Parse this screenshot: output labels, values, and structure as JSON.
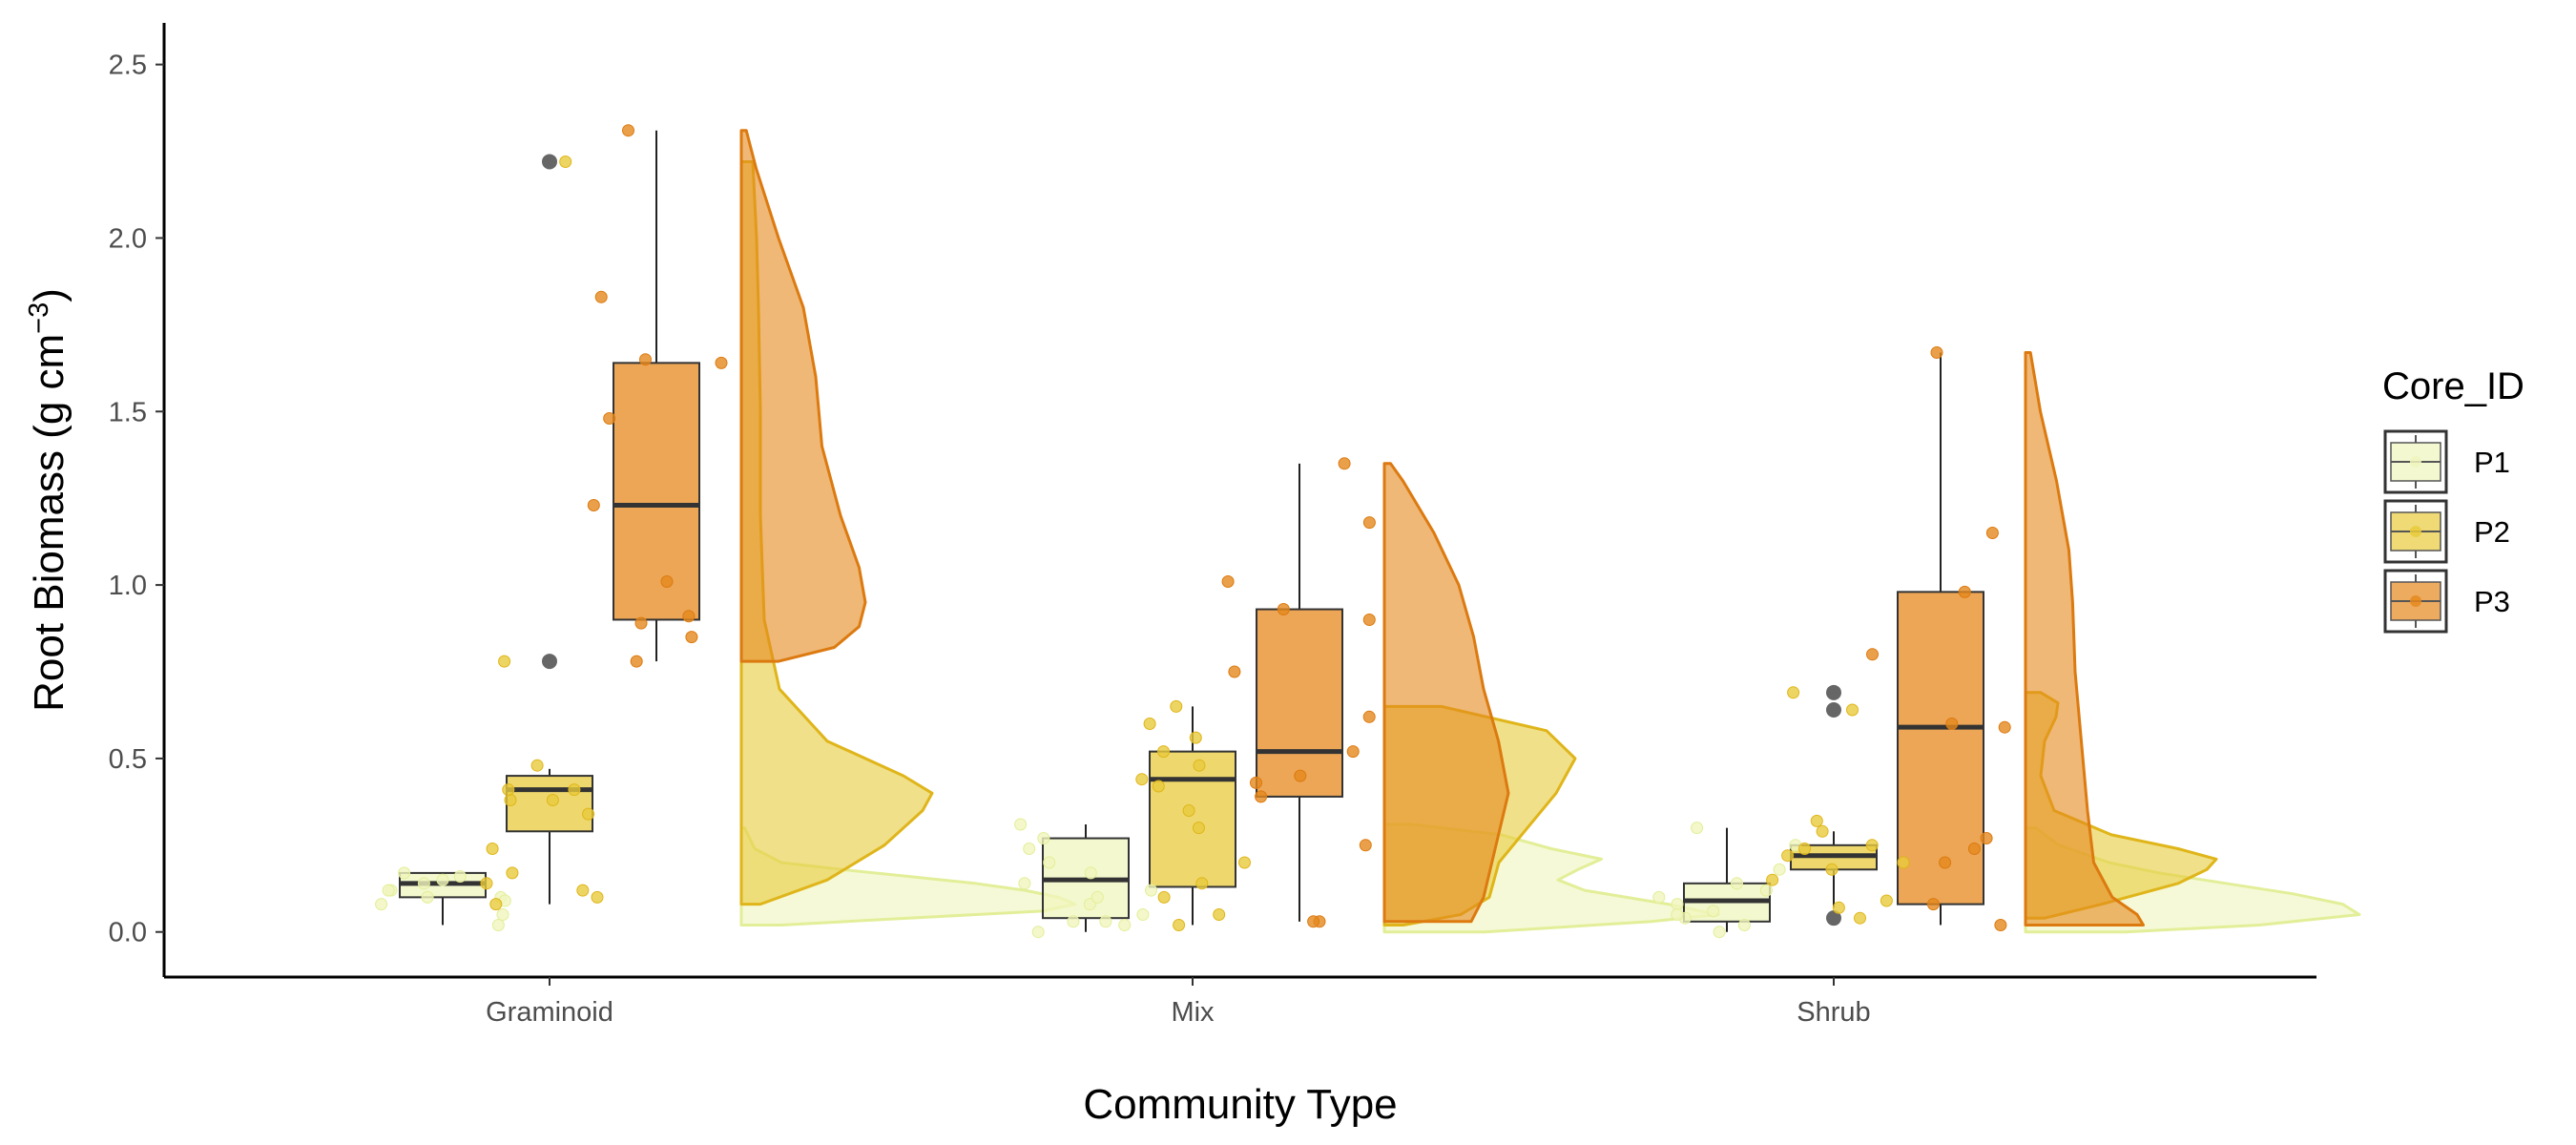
{
  "chart_data": {
    "type": "raincloud",
    "xlabel": "Community Type",
    "ylabel_main": "Root Biomass (g cm",
    "ylabel_exp": "−3",
    "ylabel_close": ")",
    "ylim": [
      -0.13,
      2.62
    ],
    "yticks": [
      0.0,
      0.5,
      1.0,
      1.5,
      2.0,
      2.5
    ],
    "ytick_labels": [
      "0.0",
      "0.5",
      "1.0",
      "1.5",
      "2.0",
      "2.5"
    ],
    "categories": [
      "Graminoid",
      "Mix",
      "Shrub"
    ],
    "legend": {
      "title": "Core_ID",
      "position": "right",
      "entries": [
        {
          "label": "P1",
          "color": "#f0f5bd"
        },
        {
          "label": "P2",
          "color": "#e8cb3c"
        },
        {
          "label": "P3",
          "color": "#e5881d"
        }
      ]
    },
    "series": [
      {
        "name": "P1",
        "fill": "#f0f5bd",
        "edge": "#e3ee98",
        "groups": [
          {
            "category": "Graminoid",
            "q1": 0.1,
            "median": 0.14,
            "q3": 0.17,
            "whisker_low": 0.02,
            "whisker_high": 0.17,
            "outliers": [],
            "points": [
              0.02,
              0.05,
              0.08,
              0.1,
              0.1,
              0.12,
              0.14,
              0.15,
              0.16,
              0.17,
              0.12,
              0.09
            ],
            "density": [
              [
                0.02,
                0.12
              ],
              [
                0.04,
                0.5
              ],
              [
                0.06,
                0.9
              ],
              [
                0.08,
                1.0
              ],
              [
                0.1,
                0.95
              ],
              [
                0.12,
                0.85
              ],
              [
                0.14,
                0.7
              ],
              [
                0.16,
                0.5
              ],
              [
                0.18,
                0.3
              ],
              [
                0.2,
                0.12
              ],
              [
                0.24,
                0.04
              ],
              [
                0.3,
                0.01
              ]
            ]
          },
          {
            "category": "Mix",
            "q1": 0.04,
            "median": 0.15,
            "q3": 0.27,
            "whisker_low": 0.0,
            "whisker_high": 0.31,
            "outliers": [],
            "points": [
              0.0,
              0.02,
              0.03,
              0.05,
              0.08,
              0.1,
              0.14,
              0.17,
              0.2,
              0.24,
              0.27,
              0.31,
              0.03,
              0.12
            ],
            "density": [
              [
                0.0,
                0.3
              ],
              [
                0.03,
                0.8
              ],
              [
                0.05,
                1.0
              ],
              [
                0.08,
                0.85
              ],
              [
                0.12,
                0.6
              ],
              [
                0.15,
                0.52
              ],
              [
                0.18,
                0.58
              ],
              [
                0.21,
                0.65
              ],
              [
                0.24,
                0.5
              ],
              [
                0.28,
                0.35
              ],
              [
                0.31,
                0.08
              ]
            ]
          },
          {
            "category": "Shrub",
            "q1": 0.03,
            "median": 0.09,
            "q3": 0.14,
            "whisker_low": 0.0,
            "whisker_high": 0.3,
            "outliers": [],
            "points": [
              0.0,
              0.02,
              0.04,
              0.06,
              0.08,
              0.1,
              0.12,
              0.14,
              0.18,
              0.25,
              0.3,
              0.05
            ],
            "density": [
              [
                0.0,
                0.3
              ],
              [
                0.02,
                0.7
              ],
              [
                0.05,
                1.0
              ],
              [
                0.08,
                0.95
              ],
              [
                0.11,
                0.8
              ],
              [
                0.14,
                0.6
              ],
              [
                0.17,
                0.4
              ],
              [
                0.2,
                0.25
              ],
              [
                0.25,
                0.1
              ],
              [
                0.3,
                0.03
              ]
            ]
          }
        ]
      },
      {
        "name": "P2",
        "fill": "#e8cb3c",
        "edge": "#dfb51a",
        "groups": [
          {
            "category": "Graminoid",
            "q1": 0.29,
            "median": 0.41,
            "q3": 0.45,
            "whisker_low": 0.08,
            "whisker_high": 0.47,
            "outliers": [
              0.78,
              2.22
            ],
            "points": [
              0.08,
              0.1,
              0.12,
              0.14,
              0.17,
              0.24,
              0.34,
              0.38,
              0.38,
              0.41,
              0.41,
              0.48,
              0.78,
              2.22
            ],
            "density": [
              [
                0.08,
                0.1
              ],
              [
                0.15,
                0.45
              ],
              [
                0.25,
                0.75
              ],
              [
                0.35,
                0.95
              ],
              [
                0.4,
                1.0
              ],
              [
                0.45,
                0.85
              ],
              [
                0.55,
                0.45
              ],
              [
                0.7,
                0.2
              ],
              [
                0.9,
                0.12
              ],
              [
                1.2,
                0.1
              ],
              [
                1.5,
                0.1
              ],
              [
                1.8,
                0.09
              ],
              [
                2.0,
                0.08
              ],
              [
                2.22,
                0.06
              ]
            ]
          },
          {
            "category": "Mix",
            "q1": 0.13,
            "median": 0.44,
            "q3": 0.52,
            "whisker_low": 0.02,
            "whisker_high": 0.65,
            "outliers": [],
            "points": [
              0.02,
              0.05,
              0.1,
              0.14,
              0.2,
              0.3,
              0.35,
              0.42,
              0.44,
              0.48,
              0.52,
              0.56,
              0.6,
              0.65
            ],
            "density": [
              [
                0.02,
                0.1
              ],
              [
                0.05,
                0.4
              ],
              [
                0.1,
                0.55
              ],
              [
                0.2,
                0.6
              ],
              [
                0.3,
                0.75
              ],
              [
                0.4,
                0.9
              ],
              [
                0.5,
                1.0
              ],
              [
                0.58,
                0.85
              ],
              [
                0.65,
                0.3
              ]
            ]
          },
          {
            "category": "Shrub",
            "q1": 0.18,
            "median": 0.22,
            "q3": 0.25,
            "whisker_low": 0.07,
            "whisker_high": 0.29,
            "outliers": [
              0.04,
              0.64,
              0.69
            ],
            "points": [
              0.04,
              0.07,
              0.09,
              0.15,
              0.18,
              0.2,
              0.22,
              0.24,
              0.25,
              0.29,
              0.32,
              0.64,
              0.69
            ],
            "density": [
              [
                0.04,
                0.1
              ],
              [
                0.08,
                0.4
              ],
              [
                0.14,
                0.8
              ],
              [
                0.18,
                0.95
              ],
              [
                0.21,
                1.0
              ],
              [
                0.24,
                0.8
              ],
              [
                0.28,
                0.45
              ],
              [
                0.35,
                0.15
              ],
              [
                0.45,
                0.08
              ],
              [
                0.55,
                0.1
              ],
              [
                0.62,
                0.16
              ],
              [
                0.66,
                0.17
              ],
              [
                0.69,
                0.08
              ]
            ]
          }
        ]
      },
      {
        "name": "P3",
        "fill": "#e5881d",
        "edge": "#dc7a10",
        "groups": [
          {
            "category": "Graminoid",
            "q1": 0.9,
            "median": 1.23,
            "q3": 1.64,
            "whisker_low": 0.78,
            "whisker_high": 2.31,
            "outliers": [],
            "points": [
              0.78,
              0.85,
              0.89,
              0.91,
              1.01,
              1.23,
              1.48,
              1.64,
              1.65,
              1.83,
              2.31
            ],
            "density": [
              [
                0.78,
                0.3
              ],
              [
                0.82,
                0.75
              ],
              [
                0.88,
                0.95
              ],
              [
                0.95,
                1.0
              ],
              [
                1.05,
                0.95
              ],
              [
                1.2,
                0.8
              ],
              [
                1.4,
                0.65
              ],
              [
                1.6,
                0.6
              ],
              [
                1.8,
                0.5
              ],
              [
                2.0,
                0.3
              ],
              [
                2.2,
                0.12
              ],
              [
                2.31,
                0.04
              ]
            ]
          },
          {
            "category": "Mix",
            "q1": 0.39,
            "median": 0.52,
            "q3": 0.93,
            "whisker_low": 0.03,
            "whisker_high": 1.35,
            "outliers": [],
            "points": [
              0.03,
              0.03,
              0.25,
              0.39,
              0.43,
              0.45,
              0.52,
              0.62,
              0.75,
              0.9,
              0.93,
              1.01,
              1.18,
              1.35
            ],
            "density": [
              [
                0.03,
                0.7
              ],
              [
                0.1,
                0.8
              ],
              [
                0.25,
                0.9
              ],
              [
                0.4,
                1.0
              ],
              [
                0.55,
                0.92
              ],
              [
                0.7,
                0.8
              ],
              [
                0.85,
                0.72
              ],
              [
                1.0,
                0.6
              ],
              [
                1.15,
                0.4
              ],
              [
                1.3,
                0.15
              ],
              [
                1.35,
                0.05
              ]
            ]
          },
          {
            "category": "Shrub",
            "q1": 0.08,
            "median": 0.59,
            "q3": 0.98,
            "whisker_low": 0.02,
            "whisker_high": 1.67,
            "outliers": [],
            "points": [
              0.02,
              0.08,
              0.2,
              0.24,
              0.27,
              0.59,
              0.6,
              0.8,
              0.98,
              1.15,
              1.67
            ],
            "density": [
              [
                0.02,
                0.95
              ],
              [
                0.05,
                0.9
              ],
              [
                0.1,
                0.7
              ],
              [
                0.2,
                0.55
              ],
              [
                0.35,
                0.5
              ],
              [
                0.55,
                0.45
              ],
              [
                0.75,
                0.4
              ],
              [
                0.95,
                0.38
              ],
              [
                1.1,
                0.35
              ],
              [
                1.3,
                0.25
              ],
              [
                1.5,
                0.12
              ],
              [
                1.67,
                0.04
              ]
            ]
          }
        ]
      }
    ]
  }
}
